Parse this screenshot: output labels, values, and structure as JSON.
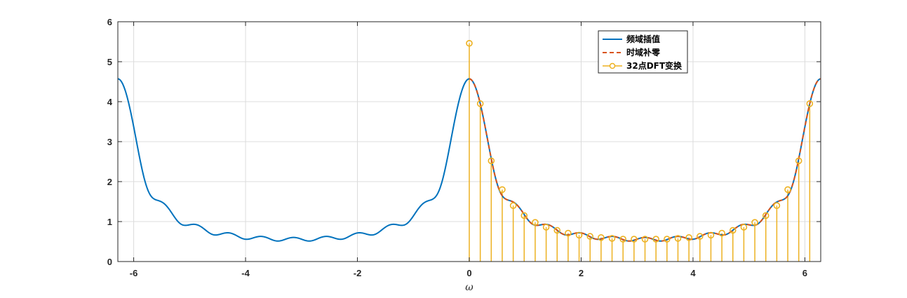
{
  "chart_data": {
    "type": "line",
    "title": "",
    "xlabel": "ω",
    "ylabel": "",
    "xlim": [
      -6.2832,
      6.2832
    ],
    "ylim": [
      0,
      6
    ],
    "grid": true,
    "legend_placement": "top-center-right",
    "xticks": [
      -6,
      -4,
      -2,
      0,
      2,
      4,
      6
    ],
    "xtick_labels": [
      "-6",
      "-4",
      "-2",
      "0",
      "2",
      "4",
      "6"
    ],
    "yticks": [
      0,
      1,
      2,
      3,
      4,
      5,
      6
    ],
    "ytick_labels": [
      "0",
      "1",
      "2",
      "3",
      "4",
      "5",
      "6"
    ],
    "colors": {
      "interp": "#0072BD",
      "zeropad": "#D95319",
      "dft": "#EDB120",
      "grid": "#DCDCDC",
      "axis": "#262626"
    },
    "signal": {
      "a": 0.8,
      "N": 11,
      "omega_range": [
        -6.2832,
        6.2832
      ]
    },
    "series": [
      {
        "name": "频域插值",
        "style": "solid-line",
        "color": "#0072BD"
      },
      {
        "name": "时域补零",
        "style": "dashed-line",
        "color": "#D95319",
        "omega_range": [
          0,
          6.2832
        ]
      },
      {
        "name": "32点DFT变换",
        "style": "stem-circle",
        "color": "#EDB120",
        "n_points": 32,
        "x": [
          0,
          0.1963,
          0.3927,
          0.589,
          0.7854,
          0.9817,
          1.1781,
          1.3744,
          1.5708,
          1.7671,
          1.9635,
          2.1598,
          2.3562,
          2.5525,
          2.7489,
          2.9452,
          3.1416,
          3.3379,
          3.5343,
          3.7306,
          3.927,
          4.1233,
          4.3197,
          4.516,
          4.7124,
          4.9087,
          5.1051,
          5.3014,
          5.4978,
          5.6941,
          5.8905,
          6.0868
        ],
        "values": [
          5.46,
          3.95,
          2.52,
          1.8,
          1.4,
          1.15,
          0.98,
          0.86,
          0.78,
          0.71,
          0.66,
          0.63,
          0.6,
          0.58,
          0.56,
          0.56,
          0.56,
          0.56,
          0.56,
          0.58,
          0.6,
          0.63,
          0.66,
          0.71,
          0.78,
          0.86,
          0.98,
          1.15,
          1.4,
          1.8,
          2.52,
          3.95
        ]
      }
    ]
  }
}
